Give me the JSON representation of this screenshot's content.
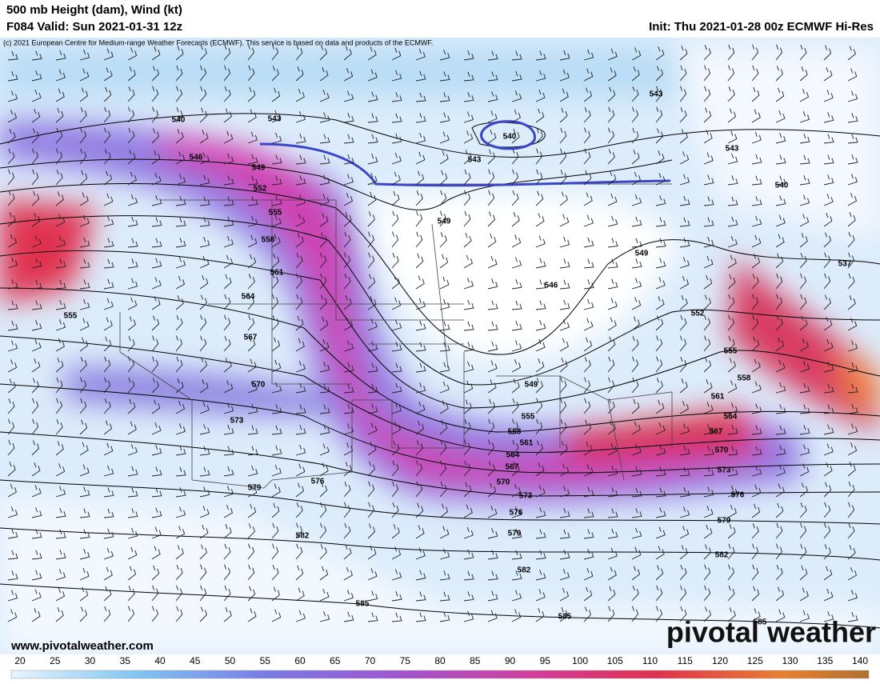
{
  "header": {
    "title": "500 mb Height (dam), Wind (kt)",
    "valid": "F084 Valid: Sun 2021-01-31 12z",
    "init": "Init: Thu 2021-01-28 00z ECMWF Hi-Res",
    "copyright": "(c) 2021 European Centre for Medium-range Weather Forecasts (ECMWF). This service is based on data and products of the ECMWF."
  },
  "contour_labels": [
    "540",
    "543",
    "546",
    "549",
    "552",
    "555",
    "558",
    "561",
    "564",
    "567",
    "570",
    "573",
    "576",
    "579",
    "582",
    "585",
    "555",
    "540",
    "543",
    "549",
    "546",
    "549",
    "552",
    "555",
    "558",
    "561",
    "564",
    "567",
    "570",
    "573",
    "576",
    "579",
    "582",
    "585",
    "585",
    "543",
    "543",
    "540",
    "537",
    "549",
    "555",
    "558",
    "561",
    "564",
    "567",
    "570",
    "573",
    "576",
    "579",
    "582"
  ],
  "colorbar": {
    "labels": [
      20,
      25,
      30,
      35,
      40,
      45,
      50,
      55,
      60,
      65,
      70,
      75,
      80,
      85,
      90,
      95,
      100,
      105,
      110,
      115,
      120,
      125,
      130,
      135,
      140
    ]
  },
  "footer": {
    "website": "www.pivotalweather.com",
    "logo": "pivotal weather"
  }
}
